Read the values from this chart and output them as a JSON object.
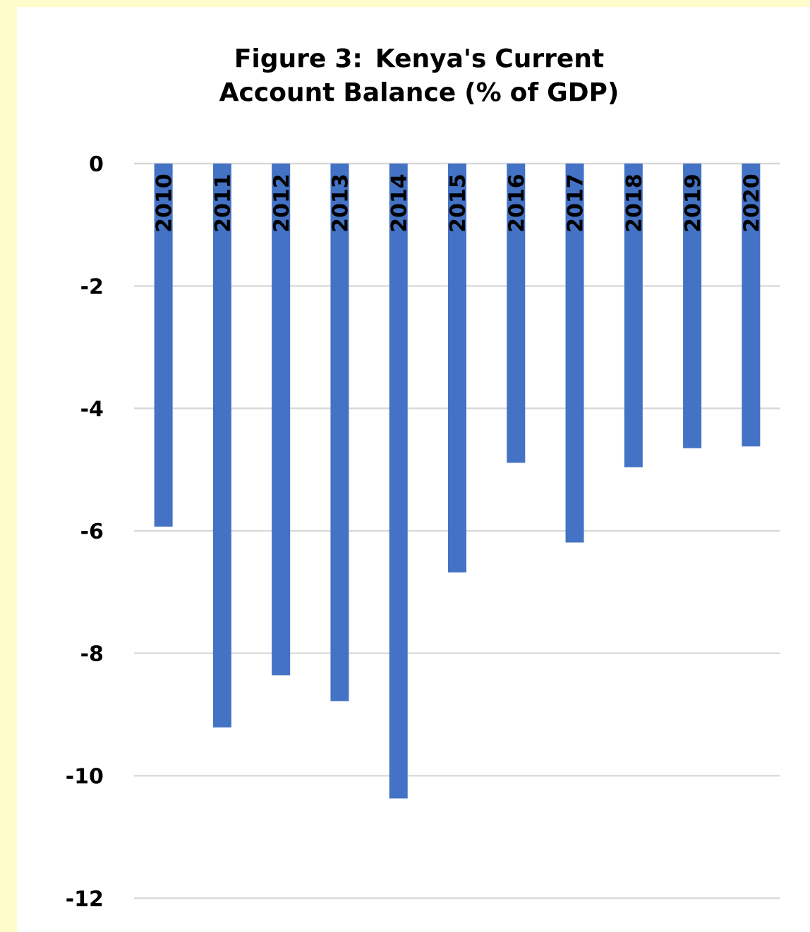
{
  "chart_data": {
    "type": "bar",
    "title": "Figure 3: Kenya's Current Account Balance (% of GDP)",
    "categories": [
      "2010",
      "2011",
      "2012",
      "2013",
      "2014",
      "2015",
      "2016",
      "2017",
      "2018",
      "2019",
      "2020"
    ],
    "values": [
      -5.93,
      -9.21,
      -8.36,
      -8.78,
      -10.37,
      -6.68,
      -4.89,
      -6.19,
      -4.96,
      -4.65,
      -4.62
    ],
    "color": "#4472c4",
    "ylim": [
      -12,
      0
    ],
    "yticks": [
      -12,
      -10,
      -8,
      -6,
      -4,
      -2,
      0
    ],
    "grid": "y"
  }
}
